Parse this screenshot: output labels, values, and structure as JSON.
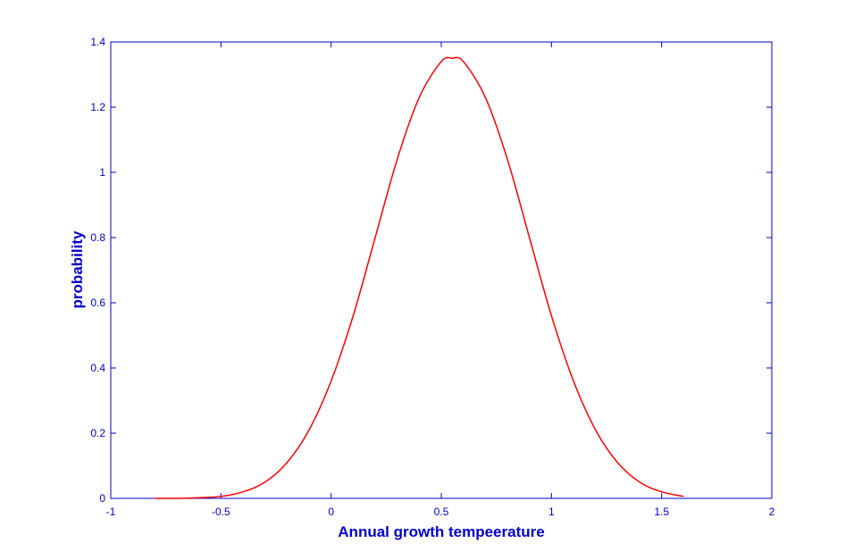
{
  "chart_data": {
    "type": "line",
    "title": "",
    "xlabel": "Annual growth tempeerature",
    "ylabel": "probability",
    "xlim": [
      -1,
      2
    ],
    "ylim": [
      0,
      1.4
    ],
    "x_ticks": [
      -1,
      -0.5,
      0,
      0.5,
      1,
      1.5,
      2
    ],
    "x_tick_labels": [
      "-1",
      "-0.5",
      "0",
      "0.5",
      "1",
      "1.5",
      "2"
    ],
    "y_ticks": [
      0,
      0.2,
      0.4,
      0.6,
      0.8,
      1,
      1.2,
      1.4
    ],
    "y_tick_labels": [
      "0",
      "0.2",
      "0.4",
      "0.6",
      "0.8",
      "1",
      "1.2",
      "1.4"
    ],
    "grid": false,
    "legend": "none",
    "axis_color": "#0000cc",
    "series": [
      {
        "color": "#ff0000",
        "x": [
          -0.8,
          -0.7,
          -0.6,
          -0.5,
          -0.4,
          -0.3,
          -0.2,
          -0.1,
          0.0,
          0.1,
          0.2,
          0.3,
          0.4,
          0.5,
          0.55,
          0.6,
          0.7,
          0.8,
          0.9,
          1.0,
          1.1,
          1.2,
          1.3,
          1.4,
          1.5,
          1.6
        ],
        "y": [
          0.0,
          0.0,
          0.002,
          0.006,
          0.02,
          0.05,
          0.11,
          0.21,
          0.36,
          0.56,
          0.8,
          1.04,
          1.23,
          1.34,
          1.35,
          1.34,
          1.23,
          1.04,
          0.8,
          0.56,
          0.36,
          0.21,
          0.11,
          0.05,
          0.02,
          0.006
        ]
      }
    ]
  }
}
